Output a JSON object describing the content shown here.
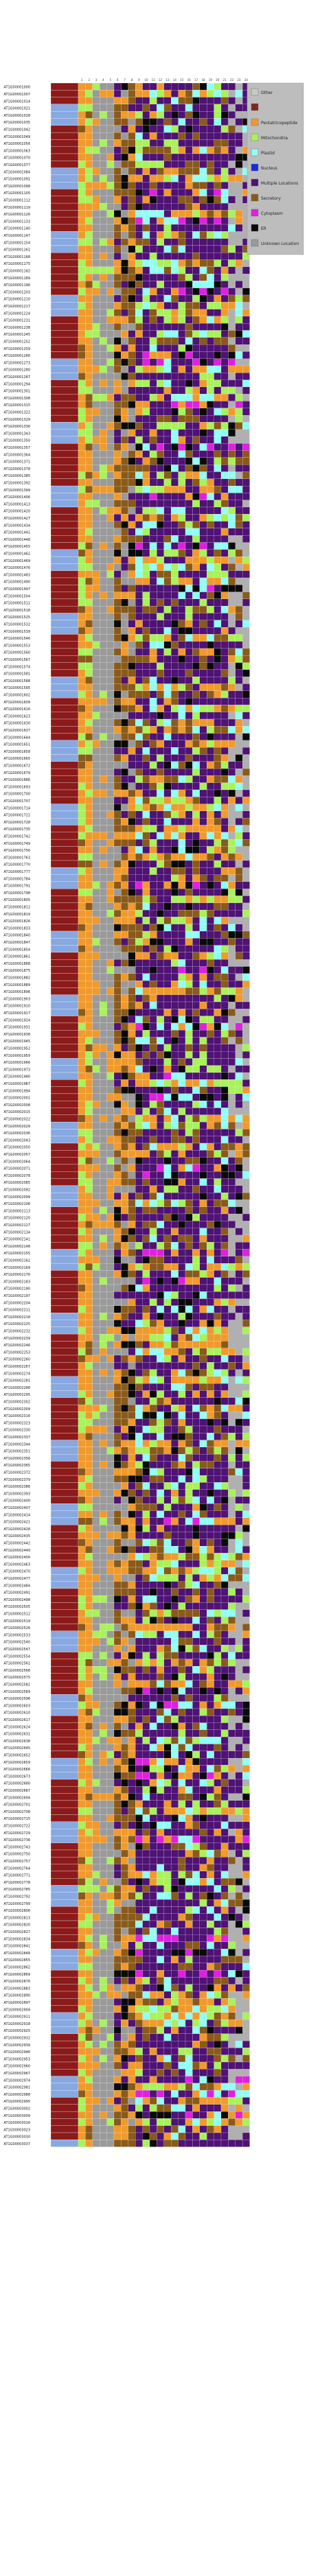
{
  "chart_data": {
    "type": "heatmap",
    "title": "",
    "xlabel": "",
    "ylabel": "",
    "n_rows": 292,
    "n_cols": 24,
    "row_label_text": "AT1G0000",
    "group_palette": [
      "#8b1a1a",
      "#87a8e0",
      "#8b1a1a",
      "#8b1a1a",
      "#87a8e0",
      "#8b1a1a"
    ],
    "legend": [
      {
        "label": "Other",
        "color": "#c8c8c8"
      },
      {
        "label": "",
        "color": "#7e2a1a"
      },
      {
        "label": "Pentatricopeptide",
        "color": "#f19a2c"
      },
      {
        "label": "Mitochondria",
        "color": "#a8f25a"
      },
      {
        "label": "Plastid",
        "color": "#90fff4"
      },
      {
        "label": "Nucleus",
        "color": "#1a2ae0"
      },
      {
        "label": "Multiple Locations",
        "color": "#4f1275"
      },
      {
        "label": "Secretory",
        "color": "#8a5a1a"
      },
      {
        "label": "Cytoplasm",
        "color": "#e020e0"
      },
      {
        "label": "ER",
        "color": "#0a0a0a"
      },
      {
        "label": "Unknown Location",
        "color": "#999999"
      }
    ],
    "cell_colors": {
      "orange": "#f19a2c",
      "gray": "#9a9a9a",
      "purple": "#4f1275",
      "brown": "#8a5a1a",
      "lime": "#a8f25a",
      "cyan": "#90fff4",
      "black": "#0a0a0a",
      "magenta": "#e020e0",
      "blue": "#1a2ae0"
    },
    "grid": true
  }
}
